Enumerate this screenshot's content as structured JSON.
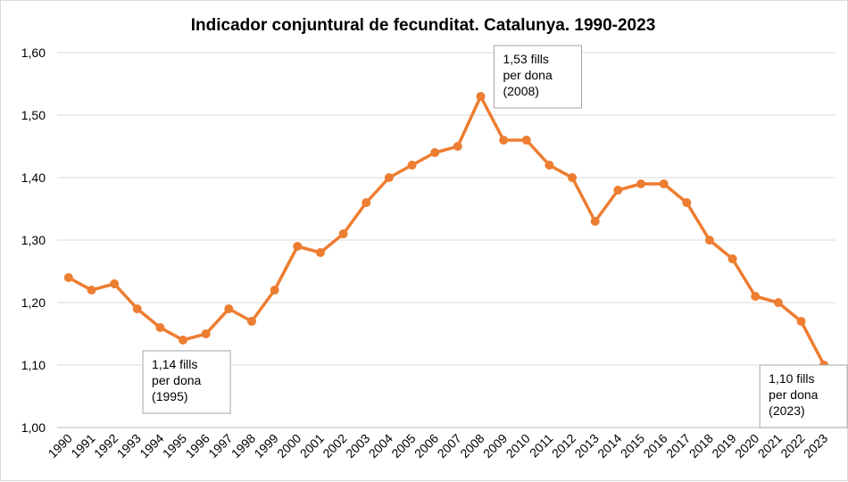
{
  "chart_data": {
    "type": "line",
    "title": "Indicador conjuntural de fecunditat. Catalunya. 1990-2023",
    "xlabel": "",
    "ylabel": "",
    "categories": [
      "1990",
      "1991",
      "1992",
      "1993",
      "1994",
      "1995",
      "1996",
      "1997",
      "1998",
      "1999",
      "2000",
      "2001",
      "2002",
      "2003",
      "2004",
      "2005",
      "2006",
      "2007",
      "2008",
      "2009",
      "2010",
      "2011",
      "2012",
      "2013",
      "2014",
      "2015",
      "2016",
      "2017",
      "2018",
      "2019",
      "2020",
      "2021",
      "2022",
      "2023"
    ],
    "series": [
      {
        "values": [
          1.24,
          1.22,
          1.23,
          1.19,
          1.16,
          1.14,
          1.15,
          1.19,
          1.17,
          1.22,
          1.29,
          1.28,
          1.31,
          1.36,
          1.4,
          1.42,
          1.44,
          1.45,
          1.53,
          1.46,
          1.46,
          1.42,
          1.4,
          1.33,
          1.38,
          1.39,
          1.39,
          1.36,
          1.3,
          1.27,
          1.21,
          1.2,
          1.17,
          1.1
        ],
        "color": "#ED7D31"
      }
    ],
    "ylim": [
      1.0,
      1.6
    ],
    "yticks": [
      "1,00",
      "1,10",
      "1,20",
      "1,30",
      "1,40",
      "1,50",
      "1,60"
    ],
    "grid": true,
    "legend": "none",
    "annotations": [
      {
        "index": 5,
        "lines": [
          "1,14 fills",
          "per dona",
          "(1995)"
        ]
      },
      {
        "index": 18,
        "lines": [
          "1,53 fills",
          "per dona",
          "(2008)"
        ]
      },
      {
        "index": 33,
        "lines": [
          "1,10 fills",
          "per dona",
          "(2023)"
        ]
      }
    ]
  }
}
